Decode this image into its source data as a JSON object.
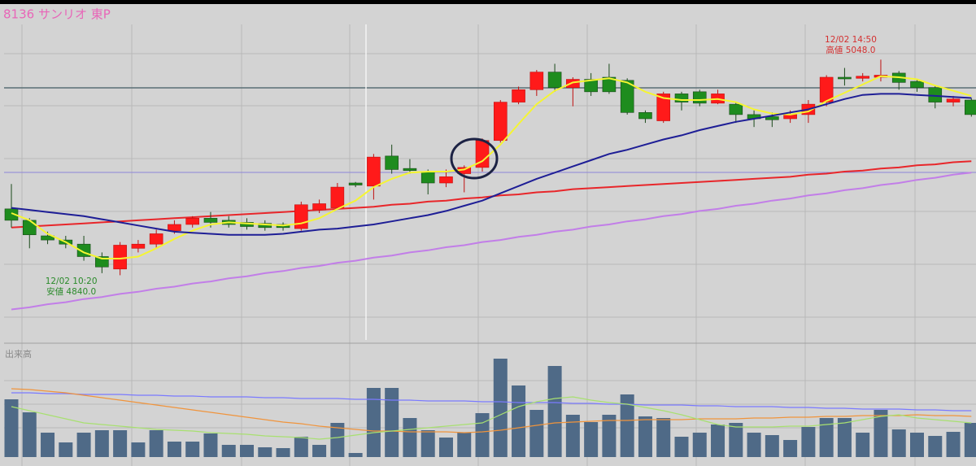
{
  "chart_data": [
    {
      "type": "candlestick",
      "title": "8136 サンリオ 東P",
      "up_color": "#ff1a1a",
      "down_color": "#1e8c1e",
      "ylim": [
        4776,
        5082
      ],
      "open": [
        4904,
        4893,
        4878,
        4874,
        4870,
        4858,
        4846,
        4866,
        4870,
        4883,
        4889,
        4895,
        4893,
        4891,
        4890,
        4889,
        4885,
        4903,
        4905,
        4929,
        4926,
        4955,
        4943,
        4940,
        4929,
        4938,
        4944,
        4970,
        5007,
        5019,
        5036,
        5021,
        5029,
        5031,
        5028,
        4997,
        4989,
        5015,
        5017,
        5006,
        5005,
        4995,
        4993,
        4991,
        4995,
        5007,
        5031,
        5030,
        5031,
        5035,
        5027,
        5021,
        5007,
        5009
      ],
      "high": [
        4928,
        4895,
        4882,
        4878,
        4878,
        4862,
        4872,
        4874,
        4884,
        4893,
        4897,
        4901,
        4897,
        4895,
        4893,
        4891,
        4911,
        4913,
        4929,
        4930,
        4957,
        4966,
        4952,
        4942,
        4942,
        4946,
        4972,
        5009,
        5022,
        5038,
        5044,
        5031,
        5035,
        5044,
        5030,
        4999,
        5017,
        5017,
        5019,
        5019,
        5007,
        4999,
        4997,
        4999,
        5009,
        5033,
        5040,
        5035,
        5048,
        5037,
        5029,
        5023,
        5013,
        5011
      ],
      "low": [
        4886,
        4866,
        4870,
        4866,
        4854,
        4842,
        4840,
        4862,
        4866,
        4880,
        4886,
        4886,
        4886,
        4884,
        4883,
        4883,
        4883,
        4900,
        4903,
        4925,
        4913,
        4938,
        4938,
        4918,
        4925,
        4920,
        4940,
        4968,
        5005,
        5013,
        5017,
        5003,
        5013,
        5015,
        4995,
        4987,
        4987,
        4999,
        5003,
        5005,
        4987,
        4983,
        4983,
        4987,
        4987,
        5003,
        5023,
        5027,
        5027,
        5019,
        5017,
        5001,
        5003,
        4993
      ],
      "close": [
        4893,
        4879,
        4874,
        4870,
        4858,
        4848,
        4869,
        4870,
        4880,
        4889,
        4895,
        4891,
        4889,
        4887,
        4886,
        4886,
        4908,
        4909,
        4925,
        4927,
        4954,
        4942,
        4941,
        4929,
        4935,
        4944,
        4970,
        5007,
        5019,
        5036,
        5021,
        5029,
        5017,
        5017,
        4997,
        4991,
        5015,
        5007,
        5006,
        5015,
        4995,
        4991,
        4990,
        4995,
        5005,
        5031,
        5030,
        5032,
        5033,
        5026,
        5021,
        5007,
        5010,
        4995
      ],
      "series": [
        {
          "color": "#f5f532",
          "values": [
            4900,
            4893,
            4880,
            4872,
            4862,
            4856,
            4856,
            4858,
            4866,
            4875,
            4883,
            4889,
            4891,
            4890,
            4889,
            4888,
            4890,
            4895,
            4904,
            4912,
            4925,
            4933,
            4939,
            4940,
            4940,
            4942,
            4950,
            4966,
            4986,
            5005,
            5018,
            5026,
            5028,
            5030,
            5026,
            5017,
            5011,
            5009,
            5009,
            5010,
            5007,
            5000,
            4996,
            4995,
            4998,
            5008,
            5016,
            5024,
            5032,
            5031,
            5029,
            5023,
            5018,
            5013
          ]
        },
        {
          "color": "#1e1e96",
          "values": [
            4905,
            4903,
            4901,
            4899,
            4897,
            4894,
            4891,
            4888,
            4885,
            4882,
            4881,
            4880,
            4879,
            4879,
            4879,
            4880,
            4882,
            4884,
            4885,
            4887,
            4889,
            4892,
            4895,
            4898,
            4902,
            4907,
            4912,
            4919,
            4926,
            4933,
            4939,
            4945,
            4951,
            4957,
            4961,
            4966,
            4971,
            4975,
            4980,
            4984,
            4988,
            4991,
            4994,
            4997,
            5000,
            5005,
            5010,
            5014,
            5015,
            5015,
            5014,
            5013,
            5012,
            5011
          ]
        },
        {
          "color": "#e8262a",
          "values": [
            4886,
            4887,
            4888,
            4889,
            4890,
            4891,
            4892,
            4893,
            4894,
            4895,
            4896,
            4897,
            4898,
            4899,
            4900,
            4901,
            4902,
            4903,
            4904,
            4905,
            4906,
            4908,
            4909,
            4911,
            4912,
            4914,
            4915,
            4917,
            4918,
            4920,
            4921,
            4923,
            4924,
            4925,
            4926,
            4927,
            4928,
            4929,
            4930,
            4931,
            4932,
            4933,
            4934,
            4935,
            4937,
            4938,
            4940,
            4941,
            4943,
            4944,
            4946,
            4947,
            4949,
            4950
          ]
        },
        {
          "color": "#c27ee8",
          "values": [
            4807,
            4809,
            4812,
            4814,
            4817,
            4819,
            4822,
            4824,
            4827,
            4829,
            4832,
            4834,
            4837,
            4839,
            4842,
            4844,
            4847,
            4849,
            4852,
            4854,
            4857,
            4859,
            4862,
            4864,
            4867,
            4869,
            4872,
            4874,
            4877,
            4879,
            4882,
            4884,
            4887,
            4889,
            4892,
            4894,
            4897,
            4899,
            4902,
            4904,
            4907,
            4909,
            4912,
            4914,
            4917,
            4919,
            4922,
            4924,
            4927,
            4929,
            4932,
            4934,
            4937,
            4939
          ]
        }
      ],
      "annotations": [
        {
          "index": 6,
          "color": "#2a8a2a",
          "lines": [
            "12/02 10:20",
            "安値 4840.0"
          ]
        },
        {
          "index": 48,
          "color": "#d43030",
          "lines": [
            "12/02 14:50",
            "高値 5048.0"
          ]
        }
      ]
    },
    {
      "type": "bar",
      "title": "出来高",
      "color": "#4f6a87",
      "ylim": [
        0,
        132
      ],
      "values": [
        71,
        55,
        30,
        18,
        30,
        33,
        33,
        18,
        33,
        19,
        19,
        29,
        15,
        15,
        12,
        11,
        25,
        15,
        42,
        5,
        85,
        85,
        48,
        33,
        24,
        30,
        54,
        121,
        88,
        58,
        112,
        52,
        43,
        52,
        77,
        50,
        48,
        25,
        30,
        40,
        42,
        30,
        27,
        21,
        37,
        48,
        48,
        30,
        58,
        34,
        30,
        26,
        31,
        42
      ],
      "series": [
        {
          "color": "#7a7aff",
          "values": [
            79,
            79,
            78,
            78,
            77,
            77,
            77,
            76,
            76,
            75,
            75,
            74,
            74,
            74,
            73,
            73,
            72,
            72,
            72,
            71,
            71,
            70,
            70,
            69,
            69,
            69,
            68,
            68,
            67,
            67,
            67,
            66,
            66,
            65,
            65,
            64,
            64,
            64,
            63,
            63,
            62,
            62,
            62,
            61,
            61,
            60,
            60,
            59,
            59,
            59,
            58,
            58,
            57,
            57
          ]
        },
        {
          "color": "#f0943c",
          "values": [
            84,
            83,
            81,
            79,
            76,
            73,
            70,
            67,
            64,
            61,
            58,
            55,
            52,
            49,
            46,
            43,
            41,
            38,
            36,
            34,
            32,
            32,
            31,
            31,
            31,
            30,
            31,
            33,
            36,
            39,
            42,
            43,
            44,
            45,
            45,
            46,
            46,
            46,
            47,
            47,
            47,
            48,
            48,
            49,
            49,
            50,
            50,
            51,
            51,
            51,
            52,
            51,
            51,
            50
          ]
        },
        {
          "color": "#a8e070",
          "values": [
            62,
            57,
            52,
            47,
            42,
            40,
            38,
            36,
            34,
            33,
            32,
            30,
            29,
            28,
            26,
            25,
            24,
            22,
            24,
            27,
            30,
            32,
            34,
            36,
            38,
            40,
            42,
            52,
            62,
            68,
            72,
            74,
            70,
            67,
            65,
            61,
            57,
            52,
            46,
            40,
            37,
            37,
            37,
            38,
            38,
            40,
            42,
            46,
            50,
            52,
            48,
            46,
            44,
            42
          ]
        }
      ]
    }
  ]
}
